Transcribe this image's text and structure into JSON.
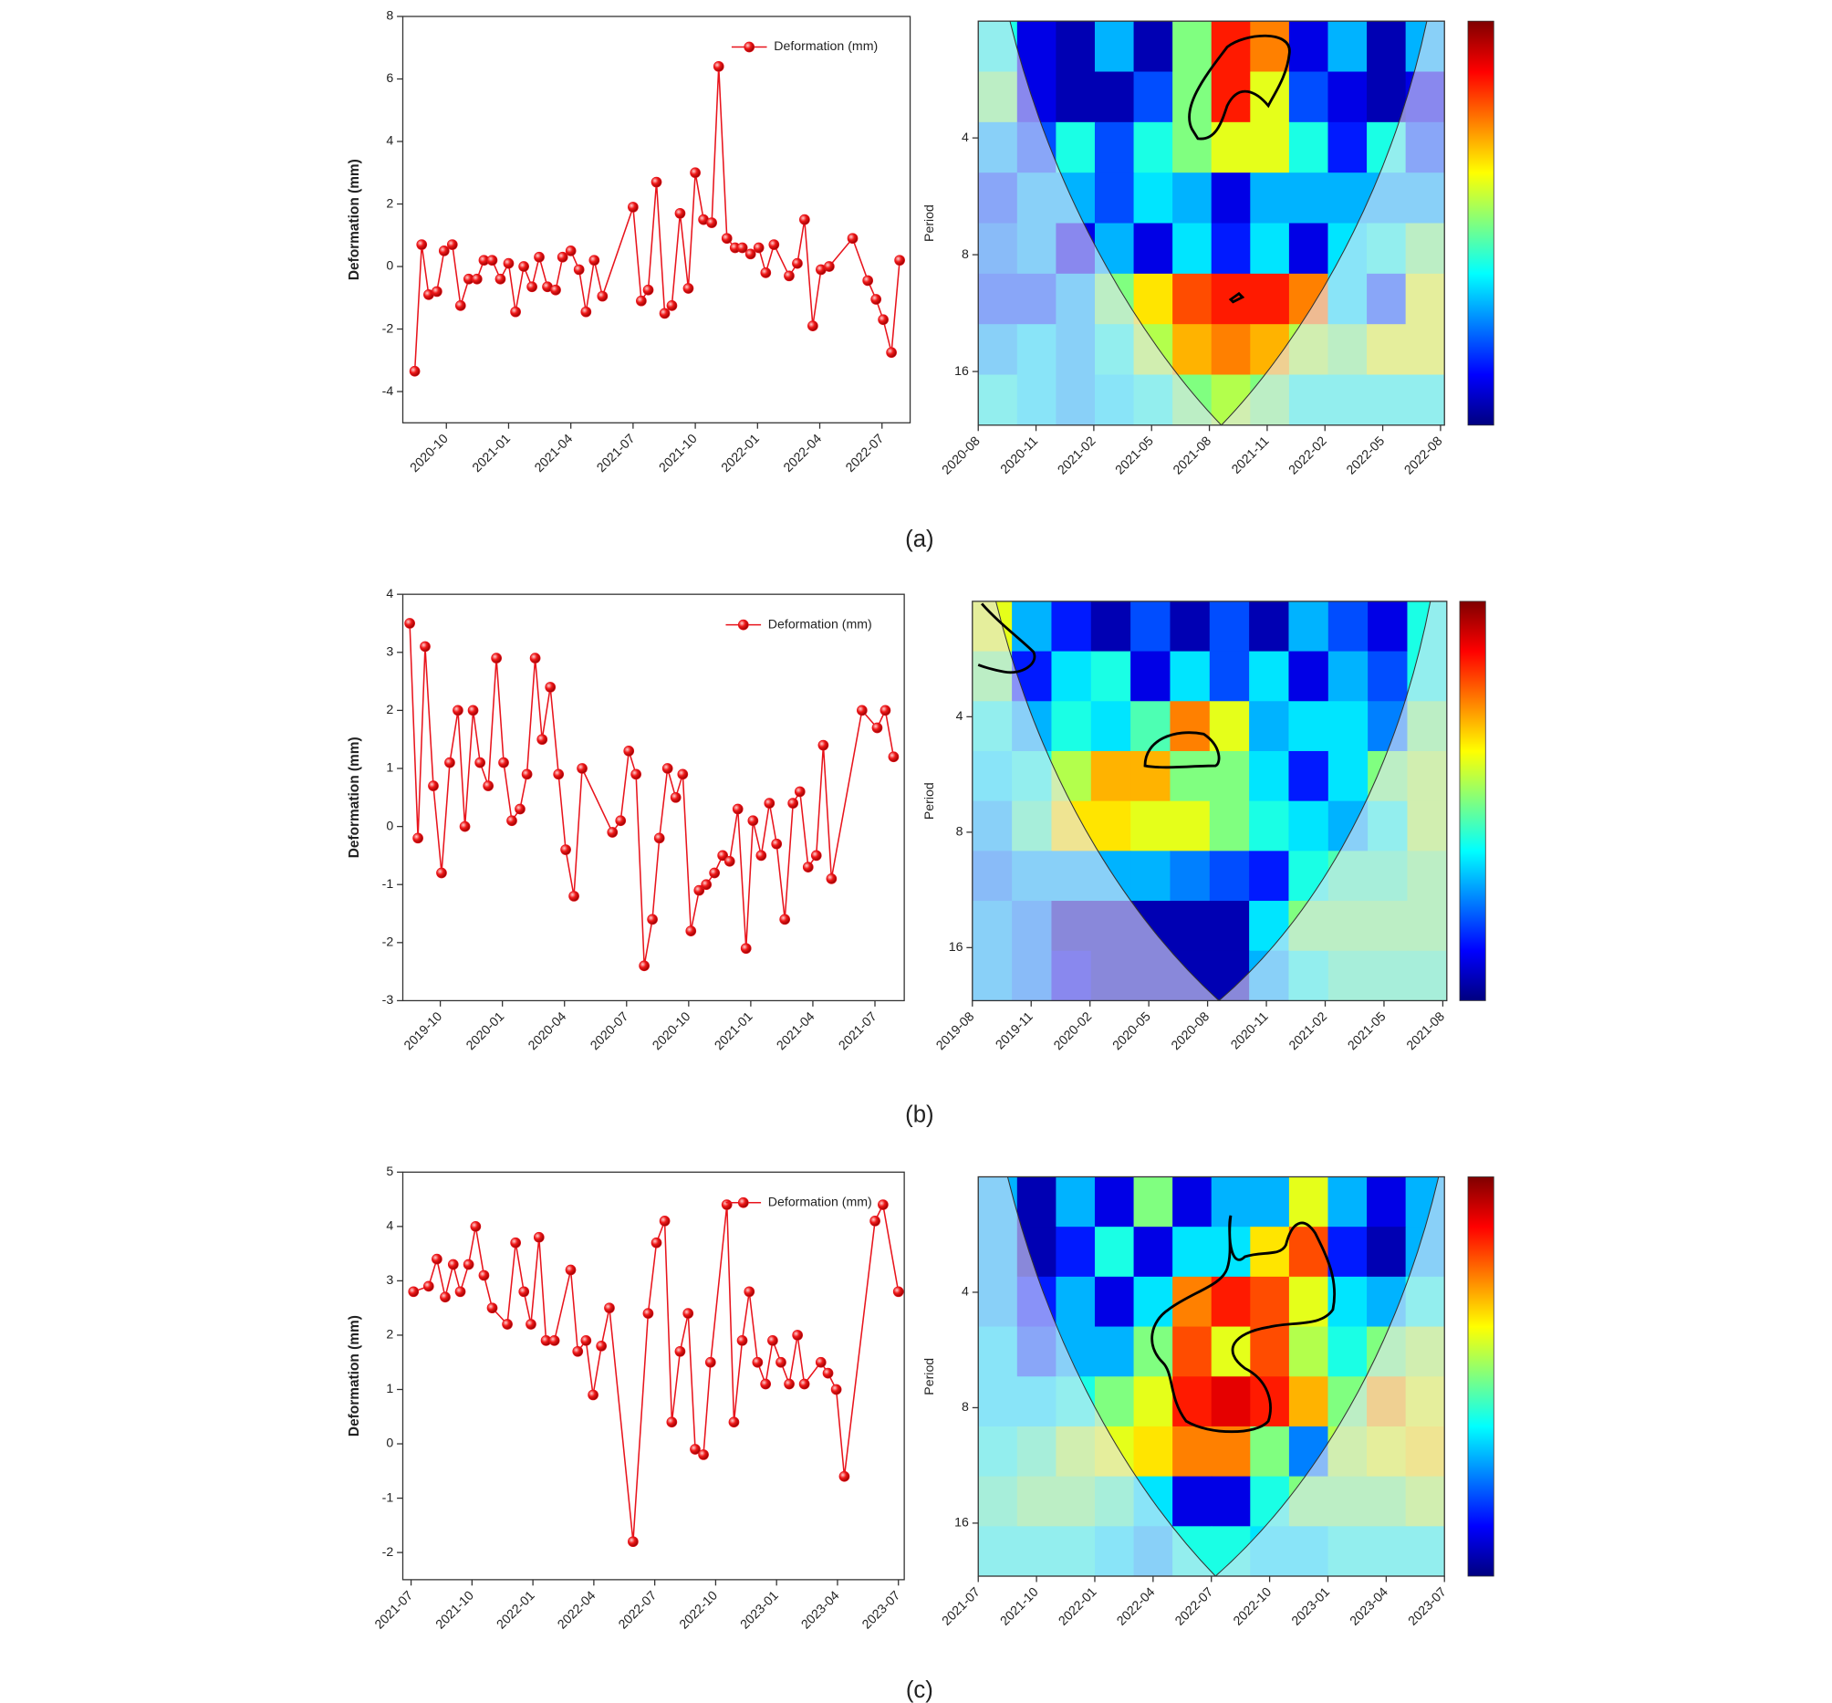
{
  "panel_labels": [
    "(a)",
    "(b)",
    "(c)"
  ],
  "chart_data": [
    {
      "type": "line",
      "ylabel": "Deformation (mm)",
      "xlim": [
        2020.575,
        2022.613
      ],
      "ylim": [
        -5,
        8
      ],
      "yticks": [
        -4,
        -2,
        0,
        2,
        4,
        6,
        8
      ],
      "xticks": [
        {
          "value": 2020.75,
          "label": "2020-10"
        },
        {
          "value": 2021.0,
          "label": "2021-01"
        },
        {
          "value": 2021.25,
          "label": "2021-04"
        },
        {
          "value": 2021.5,
          "label": "2021-07"
        },
        {
          "value": 2021.75,
          "label": "2021-10"
        },
        {
          "value": 2022.0,
          "label": "2022-01"
        },
        {
          "value": 2022.25,
          "label": "2022-04"
        },
        {
          "value": 2022.5,
          "label": "2022-07"
        }
      ],
      "series": [
        {
          "name": "Deformation (mm)",
          "color": "#e8141c",
          "x": [
            2020.623,
            2020.651,
            2020.679,
            2020.712,
            2020.741,
            2020.774,
            2020.807,
            2020.84,
            2020.873,
            2020.901,
            2020.934,
            2020.967,
            2021.0,
            2021.028,
            2021.061,
            2021.094,
            2021.123,
            2021.156,
            2021.189,
            2021.217,
            2021.25,
            2021.283,
            2021.311,
            2021.344,
            2021.377,
            2021.5,
            2021.533,
            2021.561,
            2021.594,
            2021.627,
            2021.656,
            2021.689,
            2021.722,
            2021.75,
            2021.783,
            2021.816,
            2021.844,
            2021.877,
            2021.91,
            2021.939,
            2021.972,
            2022.005,
            2022.033,
            2022.066,
            2022.127,
            2022.16,
            2022.189,
            2022.222,
            2022.255,
            2022.288,
            2022.382,
            2022.443,
            2022.476,
            2022.505,
            2022.538,
            2022.571
          ],
          "values": [
            -3.35,
            0.7,
            -0.9,
            -0.8,
            0.5,
            0.7,
            -1.25,
            -0.4,
            -0.4,
            0.2,
            0.2,
            -0.4,
            0.1,
            -1.45,
            0,
            -0.65,
            0.3,
            -0.65,
            -0.75,
            0.3,
            0.5,
            -0.1,
            -1.45,
            0.2,
            -0.95,
            1.9,
            -1.1,
            -0.75,
            2.7,
            -1.5,
            -1.25,
            1.7,
            -0.7,
            3.0,
            1.5,
            1.4,
            6.4,
            0.9,
            0.6,
            0.6,
            0.4,
            0.6,
            -0.2,
            0.7,
            -0.3,
            0.1,
            1.5,
            -1.9,
            -0.1,
            0,
            0.9,
            -0.45,
            -1.05,
            -1.7,
            -2.75,
            0.2
          ]
        }
      ]
    },
    {
      "type": "wavelet",
      "ylabel": "Period",
      "log_y": true,
      "xlim": [
        2020.583,
        2022.6
      ],
      "ylim": [
        2,
        22
      ],
      "yticks": [
        4,
        8,
        16
      ],
      "zlim": [
        0,
        1
      ],
      "xticks": [
        {
          "value": 2020.583,
          "label": "2020-08"
        },
        {
          "value": 2020.833,
          "label": "2020-11"
        },
        {
          "value": 2021.083,
          "label": "2021-02"
        },
        {
          "value": 2021.333,
          "label": "2021-05"
        },
        {
          "value": 2021.583,
          "label": "2021-08"
        },
        {
          "value": 2021.833,
          "label": "2021-11"
        },
        {
          "value": 2022.083,
          "label": "2022-02"
        },
        {
          "value": 2022.333,
          "label": "2022-05"
        },
        {
          "value": 2022.583,
          "label": "2022-08"
        }
      ],
      "z": [
        [
          0.4,
          0.1,
          0.05,
          0.3,
          0.05,
          0.5,
          0.85,
          0.75,
          0.1,
          0.3,
          0.05,
          0.3
        ],
        [
          0.5,
          0.1,
          0.05,
          0.05,
          0.2,
          0.5,
          0.85,
          0.6,
          0.2,
          0.1,
          0.05,
          0.1
        ],
        [
          0.3,
          0.2,
          0.4,
          0.2,
          0.4,
          0.5,
          0.6,
          0.6,
          0.4,
          0.15,
          0.4,
          0.2
        ],
        [
          0.2,
          0.3,
          0.3,
          0.2,
          0.35,
          0.3,
          0.1,
          0.3,
          0.3,
          0.3,
          0.3,
          0.3
        ],
        [
          0.25,
          0.3,
          0.1,
          0.3,
          0.1,
          0.35,
          0.15,
          0.35,
          0.1,
          0.35,
          0.4,
          0.5
        ],
        [
          0.2,
          0.2,
          0.3,
          0.5,
          0.65,
          0.8,
          0.85,
          0.85,
          0.75,
          0.35,
          0.2,
          0.6
        ],
        [
          0.3,
          0.35,
          0.3,
          0.4,
          0.55,
          0.7,
          0.75,
          0.7,
          0.55,
          0.5,
          0.6,
          0.6
        ],
        [
          0.4,
          0.35,
          0.3,
          0.35,
          0.4,
          0.5,
          0.55,
          0.5,
          0.4,
          0.4,
          0.4,
          0.4
        ]
      ]
    },
    {
      "type": "line",
      "ylabel": "Deformation (mm)",
      "xlim": [
        2019.599,
        2021.618
      ],
      "ylim": [
        -3,
        4
      ],
      "yticks": [
        -3,
        -2,
        -1,
        0,
        1,
        2,
        3,
        4
      ],
      "xticks": [
        {
          "value": 2019.75,
          "label": "2019-10"
        },
        {
          "value": 2020.0,
          "label": "2020-01"
        },
        {
          "value": 2020.25,
          "label": "2020-04"
        },
        {
          "value": 2020.5,
          "label": "2020-07"
        },
        {
          "value": 2020.75,
          "label": "2020-10"
        },
        {
          "value": 2021.0,
          "label": "2021-01"
        },
        {
          "value": 2021.25,
          "label": "2021-04"
        },
        {
          "value": 2021.5,
          "label": "2021-07"
        }
      ],
      "series": [
        {
          "name": "Deformation (mm)",
          "color": "#e8141c",
          "x": [
            2019.627,
            2019.66,
            2019.689,
            2019.722,
            2019.755,
            2019.788,
            2019.821,
            2019.849,
            2019.882,
            2019.91,
            2019.943,
            2019.976,
            2020.005,
            2020.038,
            2020.071,
            2020.099,
            2020.132,
            2020.16,
            2020.193,
            2020.226,
            2020.255,
            2020.288,
            2020.321,
            2020.443,
            2020.476,
            2020.509,
            2020.538,
            2020.571,
            2020.604,
            2020.632,
            2020.665,
            2020.698,
            2020.726,
            2020.759,
            2020.792,
            2020.821,
            2020.854,
            2020.887,
            2020.915,
            2020.948,
            2020.981,
            2021.009,
            2021.042,
            2021.075,
            2021.104,
            2021.137,
            2021.17,
            2021.198,
            2021.231,
            2021.264,
            2021.292,
            2021.325,
            2021.448,
            2021.509,
            2021.542,
            2021.575
          ],
          "values": [
            3.5,
            -0.2,
            3.1,
            0.7,
            -0.8,
            1.1,
            2.0,
            0,
            2.0,
            1.1,
            0.7,
            2.9,
            1.1,
            0.1,
            0.3,
            0.9,
            2.9,
            1.5,
            2.4,
            0.9,
            -0.4,
            -1.2,
            1.0,
            -0.1,
            0.1,
            1.3,
            0.9,
            -2.4,
            -1.6,
            -0.2,
            1.0,
            0.5,
            0.9,
            -1.8,
            -1.1,
            -1.0,
            -0.8,
            -0.5,
            -0.6,
            0.3,
            -2.1,
            0.1,
            -0.5,
            0.4,
            -0.3,
            -1.6,
            0.4,
            0.6,
            -0.7,
            -0.5,
            1.4,
            -0.9,
            2.0,
            1.7,
            2.0,
            1.2
          ]
        }
      ]
    },
    {
      "type": "wavelet",
      "ylabel": "Period",
      "log_y": true,
      "xlim": [
        2019.583,
        2021.6
      ],
      "ylim": [
        2,
        22
      ],
      "yticks": [
        4,
        8,
        16
      ],
      "zlim": [
        0,
        1
      ],
      "xticks": [
        {
          "value": 2019.583,
          "label": "2019-08"
        },
        {
          "value": 2019.833,
          "label": "2019-11"
        },
        {
          "value": 2020.083,
          "label": "2020-02"
        },
        {
          "value": 2020.333,
          "label": "2020-05"
        },
        {
          "value": 2020.583,
          "label": "2020-08"
        },
        {
          "value": 2020.833,
          "label": "2020-11"
        },
        {
          "value": 2021.083,
          "label": "2021-02"
        },
        {
          "value": 2021.333,
          "label": "2021-05"
        },
        {
          "value": 2021.583,
          "label": "2021-08"
        }
      ],
      "z": [
        [
          0.6,
          0.3,
          0.15,
          0.05,
          0.2,
          0.05,
          0.2,
          0.05,
          0.3,
          0.2,
          0.1,
          0.4
        ],
        [
          0.5,
          0.15,
          0.35,
          0.4,
          0.1,
          0.35,
          0.2,
          0.35,
          0.1,
          0.3,
          0.2,
          0.4
        ],
        [
          0.4,
          0.3,
          0.4,
          0.35,
          0.45,
          0.75,
          0.6,
          0.3,
          0.35,
          0.35,
          0.25,
          0.5
        ],
        [
          0.35,
          0.4,
          0.55,
          0.7,
          0.7,
          0.5,
          0.5,
          0.35,
          0.15,
          0.35,
          0.5,
          0.55
        ],
        [
          0.3,
          0.45,
          0.65,
          0.65,
          0.6,
          0.6,
          0.5,
          0.4,
          0.35,
          0.3,
          0.4,
          0.55
        ],
        [
          0.25,
          0.3,
          0.3,
          0.3,
          0.3,
          0.25,
          0.2,
          0.15,
          0.4,
          0.45,
          0.45,
          0.5
        ],
        [
          0.3,
          0.25,
          0.05,
          0.05,
          0.05,
          0.05,
          0.05,
          0.35,
          0.5,
          0.5,
          0.5,
          0.5
        ],
        [
          0.3,
          0.25,
          0.1,
          0.05,
          0.05,
          0.05,
          0.05,
          0.3,
          0.4,
          0.45,
          0.45,
          0.45
        ]
      ]
    },
    {
      "type": "line",
      "ylabel": "Deformation (mm)",
      "xlim": [
        2021.466,
        2023.524
      ],
      "ylim": [
        -2.5,
        5
      ],
      "yticks": [
        -2,
        -1,
        0,
        1,
        2,
        3,
        4,
        5
      ],
      "xticks": [
        {
          "value": 2021.5,
          "label": "2021-07"
        },
        {
          "value": 2021.75,
          "label": "2021-10"
        },
        {
          "value": 2022.0,
          "label": "2022-01"
        },
        {
          "value": 2022.25,
          "label": "2022-04"
        },
        {
          "value": 2022.5,
          "label": "2022-07"
        },
        {
          "value": 2022.75,
          "label": "2022-10"
        },
        {
          "value": 2023.0,
          "label": "2023-01"
        },
        {
          "value": 2023.25,
          "label": "2023-04"
        },
        {
          "value": 2023.5,
          "label": "2023-07"
        }
      ],
      "series": [
        {
          "name": "Deformation (mm)",
          "color": "#e8141c",
          "x": [
            2021.51,
            2021.572,
            2021.606,
            2021.64,
            2021.673,
            2021.702,
            2021.736,
            2021.765,
            2021.799,
            2021.833,
            2021.895,
            2021.929,
            2021.963,
            2021.992,
            2022.025,
            2022.054,
            2022.088,
            2022.155,
            2022.184,
            2022.218,
            2022.247,
            2022.281,
            2022.314,
            2022.411,
            2022.473,
            2022.507,
            2022.541,
            2022.57,
            2022.604,
            2022.637,
            2022.666,
            2022.7,
            2022.729,
            2022.796,
            2022.825,
            2022.859,
            2022.888,
            2022.922,
            2022.955,
            2022.984,
            2023.018,
            2023.052,
            2023.086,
            2023.114,
            2023.182,
            2023.211,
            2023.245,
            2023.278,
            2023.404,
            2023.437,
            2023.5
          ],
          "values": [
            2.8,
            2.9,
            3.4,
            2.7,
            3.3,
            2.8,
            3.3,
            4.0,
            3.1,
            2.5,
            2.2,
            3.7,
            2.8,
            2.2,
            3.8,
            1.9,
            1.9,
            3.2,
            1.7,
            1.9,
            0.9,
            1.8,
            2.5,
            -1.8,
            2.4,
            3.7,
            4.1,
            0.4,
            1.7,
            2.4,
            -0.1,
            -0.2,
            1.5,
            4.4,
            0.4,
            1.9,
            2.8,
            1.5,
            1.1,
            1.9,
            1.5,
            1.1,
            2.0,
            1.1,
            1.5,
            1.3,
            1.0,
            -0.6,
            4.1,
            4.4,
            2.8
          ]
        }
      ]
    },
    {
      "type": "wavelet",
      "ylabel": "Period",
      "log_y": true,
      "xlim": [
        2021.5,
        2023.5
      ],
      "ylim": [
        2,
        22
      ],
      "yticks": [
        4,
        8,
        16
      ],
      "zlim": [
        0,
        1
      ],
      "xticks": [
        {
          "value": 2021.5,
          "label": "2021-07"
        },
        {
          "value": 2021.75,
          "label": "2021-10"
        },
        {
          "value": 2022.0,
          "label": "2022-01"
        },
        {
          "value": 2022.25,
          "label": "2022-04"
        },
        {
          "value": 2022.5,
          "label": "2022-07"
        },
        {
          "value": 2022.75,
          "label": "2022-10"
        },
        {
          "value": 2023.0,
          "label": "2023-01"
        },
        {
          "value": 2023.25,
          "label": "2023-04"
        },
        {
          "value": 2023.5,
          "label": "2023-07"
        }
      ],
      "z": [
        [
          0.3,
          0.05,
          0.3,
          0.1,
          0.5,
          0.1,
          0.3,
          0.3,
          0.6,
          0.3,
          0.1,
          0.3
        ],
        [
          0.3,
          0.05,
          0.15,
          0.4,
          0.1,
          0.35,
          0.35,
          0.65,
          0.8,
          0.15,
          0.05,
          0.3
        ],
        [
          0.3,
          0.15,
          0.3,
          0.1,
          0.35,
          0.75,
          0.85,
          0.8,
          0.6,
          0.35,
          0.3,
          0.4
        ],
        [
          0.35,
          0.2,
          0.3,
          0.3,
          0.5,
          0.8,
          0.6,
          0.8,
          0.55,
          0.4,
          0.5,
          0.55
        ],
        [
          0.35,
          0.35,
          0.4,
          0.5,
          0.6,
          0.85,
          0.9,
          0.85,
          0.7,
          0.5,
          0.7,
          0.6
        ],
        [
          0.4,
          0.45,
          0.55,
          0.6,
          0.65,
          0.75,
          0.75,
          0.5,
          0.25,
          0.55,
          0.6,
          0.65
        ],
        [
          0.45,
          0.5,
          0.5,
          0.45,
          0.35,
          0.1,
          0.1,
          0.4,
          0.5,
          0.5,
          0.5,
          0.55
        ],
        [
          0.4,
          0.4,
          0.4,
          0.35,
          0.3,
          0.4,
          0.4,
          0.35,
          0.35,
          0.4,
          0.4,
          0.4
        ]
      ]
    }
  ]
}
